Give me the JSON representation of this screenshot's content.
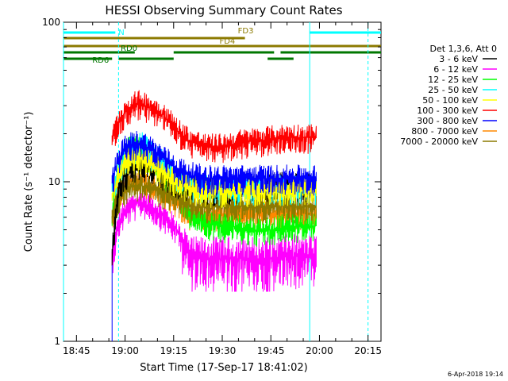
{
  "chart_data": {
    "type": "line",
    "title": "HESSI Observing Summary Count Rates",
    "xlabel": "Start Time (17-Sep-17 18:41:02)",
    "ylabel": "Count Rate (s⁻¹ detector⁻¹)",
    "yscale": "log",
    "ylim": [
      1,
      100
    ],
    "xlim": [
      "18:41",
      "20:19"
    ],
    "x_ticks": [
      "18:45",
      "19:00",
      "19:15",
      "19:30",
      "19:45",
      "20:00",
      "20:15"
    ],
    "y_ticks": [
      "1",
      "10",
      "100"
    ],
    "legend_title": "Det 1,3,6, Att 0",
    "legend_position": "right",
    "grid": false,
    "data_start": "18:56",
    "data_end": "19:59",
    "series": [
      {
        "name": "3 - 6 keV",
        "color": "#000000",
        "x": [
          "18:56",
          "18:58",
          "19:00",
          "19:02",
          "19:05",
          "19:08",
          "19:12",
          "19:16",
          "19:20",
          "19:25",
          "19:30",
          "19:35",
          "19:40",
          "19:45",
          "19:50",
          "19:55",
          "19:59"
        ],
        "values": [
          3.5,
          9,
          11,
          12,
          13,
          12.5,
          11,
          10,
          9.2,
          9,
          9,
          9.3,
          9.5,
          9.5,
          9.6,
          9.4,
          9.2
        ]
      },
      {
        "name": "6 - 12 keV",
        "color": "#ff00ff",
        "x": [
          "18:56",
          "18:58",
          "19:00",
          "19:02",
          "19:05",
          "19:08",
          "19:12",
          "19:16",
          "19:20",
          "19:25",
          "19:30",
          "19:35",
          "19:40",
          "19:45",
          "19:50",
          "19:55",
          "19:59"
        ],
        "values": [
          3.2,
          5.5,
          6.5,
          7,
          7.5,
          7,
          6,
          5,
          3.3,
          3.3,
          3.3,
          3.3,
          3.3,
          3.3,
          3.4,
          3.4,
          3.4
        ]
      },
      {
        "name": "12 - 25 keV",
        "color": "#00ff00",
        "x": [
          "18:56",
          "18:58",
          "19:00",
          "19:02",
          "19:05",
          "19:08",
          "19:12",
          "19:16",
          "19:20",
          "19:25",
          "19:30",
          "19:35",
          "19:40",
          "19:45",
          "19:50",
          "19:55",
          "19:59"
        ],
        "values": [
          6,
          12,
          15,
          17,
          16,
          14,
          11,
          9,
          6.5,
          5.5,
          5.3,
          5.2,
          5,
          5,
          5.2,
          5.3,
          5.3
        ]
      },
      {
        "name": "25 - 50 keV",
        "color": "#00ffff",
        "x": [
          "18:56",
          "18:58",
          "19:00",
          "19:02",
          "19:05",
          "19:08",
          "19:12",
          "19:16",
          "19:20",
          "19:25",
          "19:30",
          "19:35",
          "19:40",
          "19:45",
          "19:50",
          "19:55",
          "19:59"
        ],
        "values": [
          9,
          12,
          14,
          16,
          17,
          15,
          13,
          11,
          9.5,
          9,
          9,
          9,
          9,
          9,
          9,
          9,
          9
        ]
      },
      {
        "name": "50 - 100 keV",
        "color": "#ffff00",
        "x": [
          "18:56",
          "18:58",
          "19:00",
          "19:02",
          "19:05",
          "19:08",
          "19:12",
          "19:16",
          "19:20",
          "19:25",
          "19:30",
          "19:35",
          "19:40",
          "19:45",
          "19:50",
          "19:55",
          "19:59"
        ],
        "values": [
          8,
          11,
          13,
          14,
          14,
          13,
          11,
          10,
          9,
          8.8,
          8.8,
          8.8,
          8.8,
          9,
          9,
          9,
          9
        ]
      },
      {
        "name": "100 - 300 keV",
        "color": "#ff0000",
        "x": [
          "18:56",
          "18:58",
          "19:00",
          "19:02",
          "19:05",
          "19:08",
          "19:12",
          "19:16",
          "19:20",
          "19:25",
          "19:30",
          "19:35",
          "19:40",
          "19:45",
          "19:50",
          "19:55",
          "19:59"
        ],
        "values": [
          18,
          24,
          27,
          30,
          31,
          29,
          26,
          21,
          18,
          16.5,
          16.5,
          17.5,
          18,
          18.5,
          19,
          19,
          19
        ]
      },
      {
        "name": "300 - 800 keV",
        "color": "#0000ff",
        "x": [
          "18:56",
          "18:58",
          "19:00",
          "19:02",
          "19:05",
          "19:08",
          "19:12",
          "19:16",
          "19:20",
          "19:25",
          "19:30",
          "19:35",
          "19:40",
          "19:45",
          "19:50",
          "19:55",
          "19:59"
        ],
        "values": [
          10,
          14,
          16,
          17,
          17.5,
          16,
          14,
          12,
          11,
          10.5,
          10.5,
          10.5,
          10.5,
          10.5,
          10.5,
          10.5,
          10.5
        ]
      },
      {
        "name": "800 - 7000 keV",
        "color": "#ff8800",
        "x": [
          "18:56",
          "18:58",
          "19:00",
          "19:02",
          "19:05",
          "19:08",
          "19:12",
          "19:16",
          "19:20",
          "19:25",
          "19:30",
          "19:35",
          "19:40",
          "19:45",
          "19:50",
          "19:55",
          "19:59"
        ],
        "values": [
          6,
          8.5,
          9.5,
          10,
          10,
          9.5,
          8.5,
          7.5,
          6.2,
          6.2,
          6.2,
          6.3,
          6.3,
          6.3,
          6.3,
          6.3,
          6.3
        ]
      },
      {
        "name": "7000 - 20000 keV",
        "color": "#8c7a00",
        "x": [
          "18:56",
          "18:58",
          "19:00",
          "19:02",
          "19:05",
          "19:08",
          "19:12",
          "19:16",
          "19:20",
          "19:25",
          "19:30",
          "19:35",
          "19:40",
          "19:45",
          "19:50",
          "19:55",
          "19:59"
        ],
        "values": [
          6,
          8,
          9,
          9.5,
          9.5,
          9,
          8.5,
          8,
          7,
          7,
          7,
          7,
          7,
          7,
          7,
          7,
          7
        ]
      }
    ],
    "state_bars": [
      {
        "label": "N",
        "color": "#00ffff",
        "segments": [
          [
            "18:41",
            "18:57"
          ],
          [
            "19:57",
            "20:19"
          ]
        ]
      },
      {
        "label": "FD3",
        "color": "#8c7a00",
        "segments": [
          [
            "18:41",
            "19:37"
          ]
        ]
      },
      {
        "label": "FD4",
        "color": "#8c7a00",
        "segments": [
          [
            "18:41",
            "20:19"
          ]
        ]
      },
      {
        "label": "RD0",
        "color": "#007700",
        "segments": [
          [
            "18:41",
            "19:03"
          ],
          [
            "19:15",
            "19:46"
          ],
          [
            "19:48",
            "20:19"
          ]
        ]
      },
      {
        "label": "RD6",
        "color": "#007700",
        "segments": [
          [
            "18:41",
            "18:56"
          ],
          [
            "18:58",
            "19:15"
          ],
          [
            "19:44",
            "19:52"
          ]
        ]
      }
    ],
    "vlines": [
      {
        "x": "18:41",
        "color": "#00ffff",
        "style": "solid"
      },
      {
        "x": "18:58",
        "color": "#00ffff",
        "style": "dashed"
      },
      {
        "x": "19:57",
        "color": "#00ffff",
        "style": "solid"
      },
      {
        "x": "20:15",
        "color": "#00ffff",
        "style": "dashed"
      }
    ]
  },
  "footer": {
    "timestamp": "6-Apr-2018 19:14"
  }
}
